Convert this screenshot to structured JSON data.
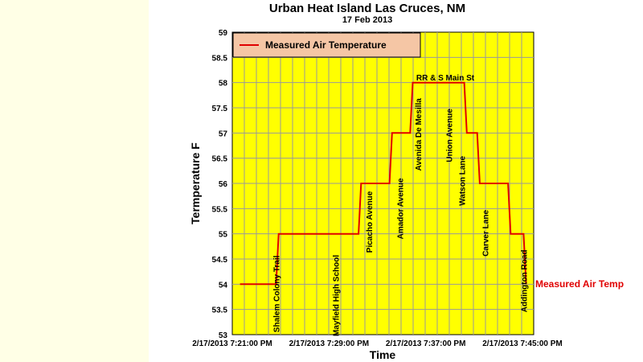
{
  "chart_data": {
    "type": "line",
    "title": "Urban Heat Island Las Cruces, NM",
    "subtitle": "17 Feb 2013",
    "xlabel": "Time",
    "ylabel": "Termperature F",
    "ylim": [
      53,
      59
    ],
    "yticks": [
      "53",
      "53.5",
      "54",
      "54.5",
      "55",
      "55.5",
      "56",
      "56.5",
      "57",
      "57.5",
      "58",
      "58.5",
      "59"
    ],
    "xlim_minutes": [
      0,
      24.5
    ],
    "x_ticks": [
      {
        "minute": 0,
        "label": "2/17/2013 7:21:00 PM"
      },
      {
        "minute": 8,
        "label": "2/17/2013 7:29:00 PM"
      },
      {
        "minute": 16,
        "label": "2/17/2013 7:37:00 PM"
      },
      {
        "minute": 24,
        "label": "2/17/2013 7:45:00 PM"
      }
    ],
    "grid": true,
    "legend": {
      "position": "top-left",
      "entry": "Measured Air Temperature"
    },
    "series": [
      {
        "name": "Measured Air Temperature",
        "end_label": "Measured Air Temp",
        "color": "#e00000",
        "points": [
          [
            0.75,
            54
          ],
          [
            4.25,
            54
          ],
          [
            4.5,
            55
          ],
          [
            12.25,
            55
          ],
          [
            12.5,
            56
          ],
          [
            15.25,
            56
          ],
          [
            15.5,
            57
          ],
          [
            17.25,
            57
          ],
          [
            17.5,
            58
          ],
          [
            22.5,
            58
          ],
          [
            22.75,
            57
          ],
          [
            23.75,
            57
          ],
          [
            24.0,
            56
          ],
          [
            26.75,
            56
          ],
          [
            27.0,
            55
          ],
          [
            28.25,
            55
          ],
          [
            28.5,
            54
          ]
        ]
      }
    ],
    "annotations": [
      {
        "text": "Shalem Colony Trail",
        "minute": 4.25,
        "orientation": "vertical"
      },
      {
        "text": "Mayfield High School",
        "minute": 10.0,
        "orientation": "vertical"
      },
      {
        "text": "Picacho Avenue",
        "minute": 13.25,
        "orientation": "vertical"
      },
      {
        "text": "Amador Avenue",
        "minute": 16.25,
        "orientation": "vertical"
      },
      {
        "text": "Avenida De Mesilla",
        "minute": 18.0,
        "orientation": "vertical"
      },
      {
        "text": "Union Avenue",
        "minute": 21.0,
        "orientation": "vertical"
      },
      {
        "text": "Watson Lane",
        "minute": 22.25,
        "orientation": "vertical"
      },
      {
        "text": "Carver Lane",
        "minute": 24.5,
        "orientation": "vertical"
      },
      {
        "text": "Addington Road",
        "minute": 28.25,
        "orientation": "vertical"
      },
      {
        "text": "RR & S Main St",
        "minute": 19.5,
        "temp": 58.0,
        "orientation": "horizontal"
      }
    ],
    "colors": {
      "plot_background": "#ffff00",
      "grid": "#9a9a9a",
      "legend_background": "#f5c6a5",
      "line": "#e00000"
    }
  }
}
